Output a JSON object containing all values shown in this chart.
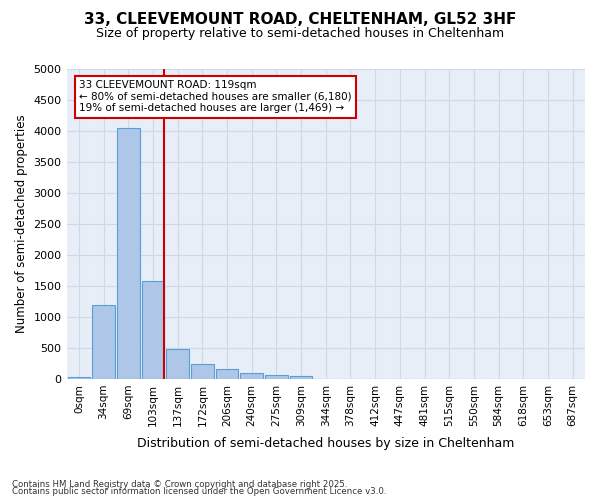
{
  "title_line1": "33, CLEEVEMOUNT ROAD, CHELTENHAM, GL52 3HF",
  "title_line2": "Size of property relative to semi-detached houses in Cheltenham",
  "xlabel": "Distribution of semi-detached houses by size in Cheltenham",
  "ylabel": "Number of semi-detached properties",
  "bin_labels": [
    "0sqm",
    "34sqm",
    "69sqm",
    "103sqm",
    "137sqm",
    "172sqm",
    "206sqm",
    "240sqm",
    "275sqm",
    "309sqm",
    "344sqm",
    "378sqm",
    "412sqm",
    "447sqm",
    "481sqm",
    "515sqm",
    "550sqm",
    "584sqm",
    "618sqm",
    "653sqm",
    "687sqm"
  ],
  "bar_values": [
    25,
    1200,
    4050,
    1580,
    480,
    240,
    155,
    90,
    55,
    45,
    0,
    0,
    0,
    0,
    0,
    0,
    0,
    0,
    0,
    0,
    0
  ],
  "bar_color": "#aec6e8",
  "bar_edge_color": "#5a9fd4",
  "grid_color": "#d0d8e8",
  "background_color": "#e8eef8",
  "vline_bin": 3,
  "vline_color": "#cc0000",
  "annotation_title": "33 CLEEVEMOUNT ROAD: 119sqm",
  "annotation_line1": "← 80% of semi-detached houses are smaller (6,180)",
  "annotation_line2": "19% of semi-detached houses are larger (1,469) →",
  "annotation_box_color": "#cc0000",
  "ylim": [
    0,
    5000
  ],
  "yticks": [
    0,
    500,
    1000,
    1500,
    2000,
    2500,
    3000,
    3500,
    4000,
    4500,
    5000
  ],
  "footnote1": "Contains HM Land Registry data © Crown copyright and database right 2025.",
  "footnote2": "Contains public sector information licensed under the Open Government Licence v3.0."
}
